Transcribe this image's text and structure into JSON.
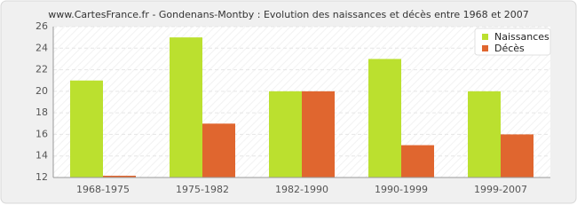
{
  "chart_data": {
    "type": "bar",
    "title": "www.CartesFrance.fr - Gondenans-Montby : Evolution des naissances et décès entre 1968 et 2007",
    "categories": [
      "1968-1975",
      "1975-1982",
      "1982-1990",
      "1990-1999",
      "1999-2007"
    ],
    "series": [
      {
        "name": "Naissances",
        "color": "#bbe02f",
        "values": [
          21,
          25,
          20,
          23,
          20
        ]
      },
      {
        "name": "Décès",
        "color": "#e0662f",
        "values": [
          12,
          17,
          20,
          15,
          16
        ]
      }
    ],
    "ylim": [
      12,
      26
    ],
    "yticks": [
      12,
      14,
      16,
      18,
      20,
      22,
      24,
      26
    ],
    "grid": true,
    "legend": "top-right"
  }
}
